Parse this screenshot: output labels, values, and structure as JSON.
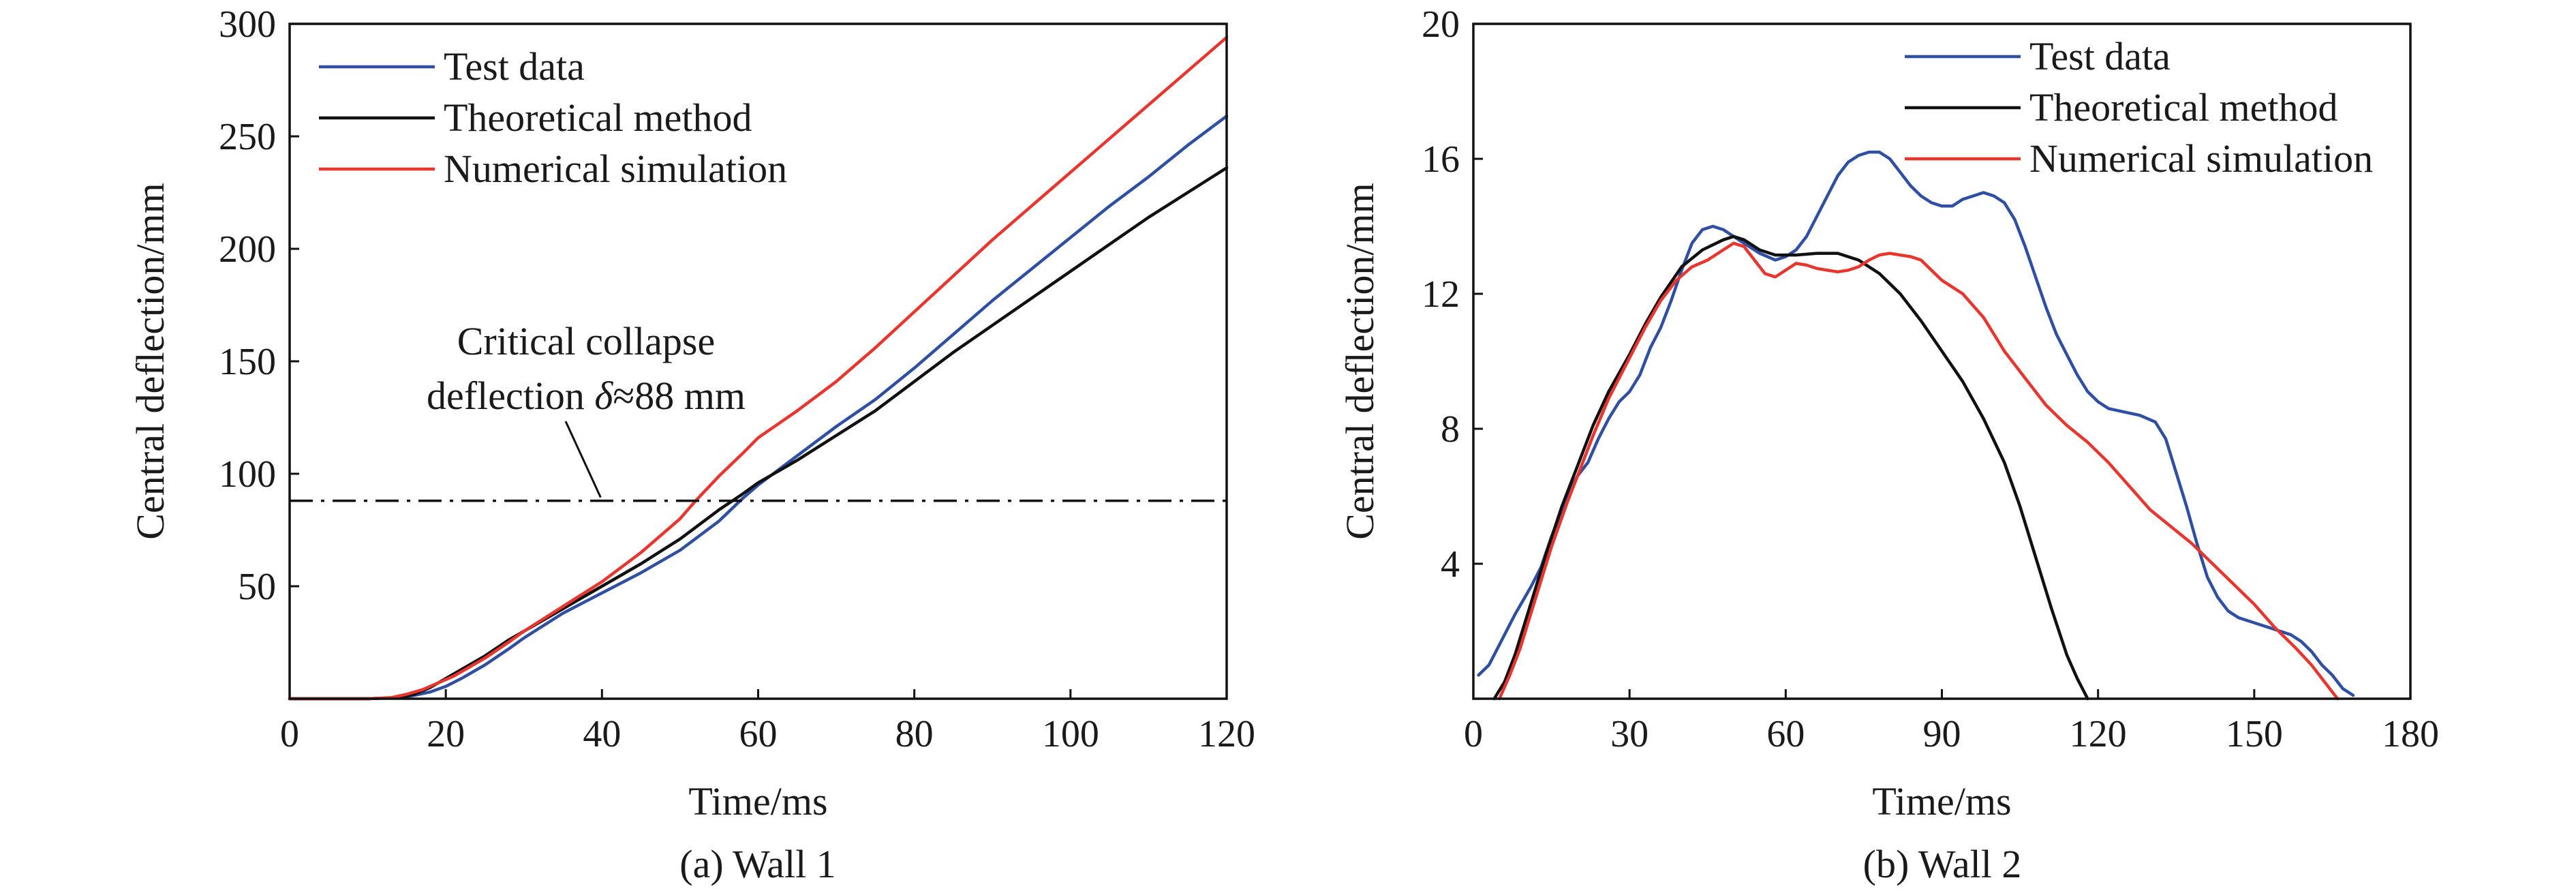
{
  "chart_data": [
    {
      "type": "line",
      "caption": "(a) Wall 1",
      "xlabel": "Time/ms",
      "ylabel": "Central deflection/mm",
      "xlim": [
        0,
        120
      ],
      "ylim": [
        0,
        300
      ],
      "xticks": [
        0,
        20,
        40,
        60,
        80,
        100,
        120
      ],
      "yticks": [
        50,
        100,
        150,
        200,
        250,
        300
      ],
      "legend_position": "top-left",
      "reference_line": {
        "y": 88,
        "style": "dash-dot"
      },
      "annotation": {
        "line1": "Critical collapse",
        "line2_prefix": "deflection ",
        "symbol": "δ",
        "line2_suffix": "≈88 mm",
        "points_to": [
          40,
          88
        ]
      },
      "series": [
        {
          "name": "Test data",
          "color": "#2f4fa2",
          "points": [
            [
              0,
              0
            ],
            [
              10,
              0
            ],
            [
              14,
              0.5
            ],
            [
              16,
              1.5
            ],
            [
              18,
              3
            ],
            [
              20,
              5.5
            ],
            [
              22,
              9
            ],
            [
              25,
              15
            ],
            [
              28,
              22
            ],
            [
              30,
              27
            ],
            [
              35,
              38
            ],
            [
              40,
              47
            ],
            [
              45,
              56
            ],
            [
              50,
              66
            ],
            [
              55,
              79
            ],
            [
              58,
              89
            ],
            [
              60,
              95
            ],
            [
              65,
              108
            ],
            [
              70,
              121
            ],
            [
              75,
              133
            ],
            [
              80,
              147
            ],
            [
              85,
              162
            ],
            [
              90,
              177
            ],
            [
              95,
              191
            ],
            [
              100,
              205
            ],
            [
              105,
              219
            ],
            [
              110,
              232
            ],
            [
              115,
              246
            ],
            [
              120,
              259
            ]
          ]
        },
        {
          "name": "Theoretical method",
          "color": "#111111",
          "points": [
            [
              0,
              0
            ],
            [
              10,
              0
            ],
            [
              14,
              0.5
            ],
            [
              16,
              2
            ],
            [
              18,
              5
            ],
            [
              20,
              9
            ],
            [
              22,
              13
            ],
            [
              25,
              19
            ],
            [
              28,
              26
            ],
            [
              30,
              30
            ],
            [
              35,
              40
            ],
            [
              40,
              50
            ],
            [
              45,
              60
            ],
            [
              50,
              71
            ],
            [
              55,
              84
            ],
            [
              58,
              91
            ],
            [
              60,
              96
            ],
            [
              65,
              106
            ],
            [
              70,
              117
            ],
            [
              75,
              128
            ],
            [
              80,
              141
            ],
            [
              85,
              154
            ],
            [
              90,
              166
            ],
            [
              95,
              178
            ],
            [
              100,
              190
            ],
            [
              105,
              202
            ],
            [
              110,
              214
            ],
            [
              115,
              225
            ],
            [
              120,
              236
            ]
          ]
        },
        {
          "name": "Numerical simulation",
          "color": "#e8362f",
          "points": [
            [
              0,
              0
            ],
            [
              10,
              0
            ],
            [
              13,
              0.5
            ],
            [
              15,
              2
            ],
            [
              17,
              4
            ],
            [
              19,
              7
            ],
            [
              21,
              10
            ],
            [
              23,
              14
            ],
            [
              25,
              18
            ],
            [
              28,
              25
            ],
            [
              30,
              30
            ],
            [
              35,
              41
            ],
            [
              40,
              52
            ],
            [
              45,
              65
            ],
            [
              50,
              80
            ],
            [
              52,
              88
            ],
            [
              55,
              99
            ],
            [
              58,
              109
            ],
            [
              60,
              116
            ],
            [
              65,
              128
            ],
            [
              70,
              141
            ],
            [
              75,
              156
            ],
            [
              80,
              172
            ],
            [
              85,
              188
            ],
            [
              90,
              204
            ],
            [
              95,
              219
            ],
            [
              100,
              234
            ],
            [
              105,
              249
            ],
            [
              110,
              264
            ],
            [
              115,
              279
            ],
            [
              120,
              294
            ]
          ]
        }
      ]
    },
    {
      "type": "line",
      "caption": "(b) Wall 2",
      "xlabel": "Time/ms",
      "ylabel": "Central deflection/mm",
      "xlim": [
        0,
        180
      ],
      "ylim": [
        0,
        20
      ],
      "xticks": [
        0,
        30,
        60,
        90,
        120,
        150,
        180
      ],
      "yticks": [
        4,
        8,
        12,
        16,
        20
      ],
      "legend_position": "top-right",
      "series": [
        {
          "name": "Test data",
          "color": "#2f4fa2",
          "points": [
            [
              1,
              0.7
            ],
            [
              3,
              1.0
            ],
            [
              5,
              1.6
            ],
            [
              8,
              2.5
            ],
            [
              11,
              3.3
            ],
            [
              13,
              3.9
            ],
            [
              15,
              4.8
            ],
            [
              17,
              5.6
            ],
            [
              19,
              6.3
            ],
            [
              20,
              6.6
            ],
            [
              22,
              7.0
            ],
            [
              24,
              7.7
            ],
            [
              26,
              8.3
            ],
            [
              28,
              8.8
            ],
            [
              30,
              9.1
            ],
            [
              32,
              9.6
            ],
            [
              34,
              10.4
            ],
            [
              36,
              11.0
            ],
            [
              38,
              11.8
            ],
            [
              40,
              12.7
            ],
            [
              42,
              13.5
            ],
            [
              44,
              13.9
            ],
            [
              46,
              14.0
            ],
            [
              48,
              13.9
            ],
            [
              50,
              13.7
            ],
            [
              52,
              13.5
            ],
            [
              55,
              13.2
            ],
            [
              58,
              13.0
            ],
            [
              60,
              13.1
            ],
            [
              62,
              13.3
            ],
            [
              64,
              13.7
            ],
            [
              66,
              14.3
            ],
            [
              68,
              14.9
            ],
            [
              70,
              15.5
            ],
            [
              72,
              15.9
            ],
            [
              74,
              16.1
            ],
            [
              76,
              16.2
            ],
            [
              78,
              16.2
            ],
            [
              80,
              16.0
            ],
            [
              82,
              15.6
            ],
            [
              84,
              15.2
            ],
            [
              86,
              14.9
            ],
            [
              88,
              14.7
            ],
            [
              90,
              14.6
            ],
            [
              92,
              14.6
            ],
            [
              94,
              14.8
            ],
            [
              96,
              14.9
            ],
            [
              98,
              15.0
            ],
            [
              100,
              14.9
            ],
            [
              102,
              14.7
            ],
            [
              104,
              14.2
            ],
            [
              106,
              13.4
            ],
            [
              108,
              12.5
            ],
            [
              110,
              11.6
            ],
            [
              112,
              10.8
            ],
            [
              114,
              10.2
            ],
            [
              116,
              9.6
            ],
            [
              118,
              9.1
            ],
            [
              120,
              8.8
            ],
            [
              122,
              8.6
            ],
            [
              125,
              8.5
            ],
            [
              128,
              8.4
            ],
            [
              131,
              8.2
            ],
            [
              133,
              7.7
            ],
            [
              135,
              6.7
            ],
            [
              137,
              5.7
            ],
            [
              139,
              4.6
            ],
            [
              141,
              3.6
            ],
            [
              143,
              3.0
            ],
            [
              145,
              2.6
            ],
            [
              147,
              2.4
            ],
            [
              149,
              2.3
            ],
            [
              151,
              2.2
            ],
            [
              153,
              2.1
            ],
            [
              155,
              2.0
            ],
            [
              157,
              1.9
            ],
            [
              159,
              1.7
            ],
            [
              161,
              1.4
            ],
            [
              163,
              1.0
            ],
            [
              165,
              0.7
            ],
            [
              167,
              0.3
            ],
            [
              169,
              0.1
            ]
          ]
        },
        {
          "name": "Theoretical method",
          "color": "#111111",
          "points": [
            [
              4,
              0
            ],
            [
              6,
              0.5
            ],
            [
              8,
              1.3
            ],
            [
              10,
              2.3
            ],
            [
              12,
              3.3
            ],
            [
              14,
              4.3
            ],
            [
              17,
              5.7
            ],
            [
              20,
              6.9
            ],
            [
              23,
              8.1
            ],
            [
              26,
              9.1
            ],
            [
              30,
              10.2
            ],
            [
              33,
              11.1
            ],
            [
              36,
              11.9
            ],
            [
              40,
              12.8
            ],
            [
              44,
              13.3
            ],
            [
              48,
              13.6
            ],
            [
              50,
              13.7
            ],
            [
              52,
              13.6
            ],
            [
              55,
              13.3
            ],
            [
              58,
              13.15
            ],
            [
              62,
              13.15
            ],
            [
              66,
              13.2
            ],
            [
              70,
              13.2
            ],
            [
              74,
              13.0
            ],
            [
              78,
              12.6
            ],
            [
              82,
              12.0
            ],
            [
              86,
              11.2
            ],
            [
              90,
              10.3
            ],
            [
              94,
              9.4
            ],
            [
              98,
              8.3
            ],
            [
              102,
              7.0
            ],
            [
              105,
              5.7
            ],
            [
              108,
              4.2
            ],
            [
              111,
              2.7
            ],
            [
              114,
              1.3
            ],
            [
              116,
              0.6
            ],
            [
              118,
              0
            ]
          ]
        },
        {
          "name": "Numerical simulation",
          "color": "#e8362f",
          "points": [
            [
              5,
              0
            ],
            [
              7,
              0.7
            ],
            [
              9,
              1.5
            ],
            [
              11,
              2.5
            ],
            [
              13,
              3.5
            ],
            [
              15,
              4.5
            ],
            [
              18,
              5.8
            ],
            [
              20,
              6.6
            ],
            [
              23,
              7.8
            ],
            [
              26,
              8.9
            ],
            [
              30,
              10.1
            ],
            [
              33,
              11.0
            ],
            [
              36,
              11.8
            ],
            [
              39,
              12.4
            ],
            [
              42,
              12.8
            ],
            [
              45,
              13.0
            ],
            [
              48,
              13.3
            ],
            [
              50,
              13.5
            ],
            [
              52,
              13.4
            ],
            [
              54,
              13.0
            ],
            [
              56,
              12.6
            ],
            [
              58,
              12.5
            ],
            [
              60,
              12.7
            ],
            [
              62,
              12.9
            ],
            [
              64,
              12.85
            ],
            [
              66,
              12.75
            ],
            [
              68,
              12.7
            ],
            [
              70,
              12.65
            ],
            [
              72,
              12.7
            ],
            [
              74,
              12.8
            ],
            [
              76,
              13.0
            ],
            [
              78,
              13.15
            ],
            [
              80,
              13.2
            ],
            [
              82,
              13.15
            ],
            [
              84,
              13.1
            ],
            [
              86,
              13.0
            ],
            [
              88,
              12.7
            ],
            [
              90,
              12.4
            ],
            [
              94,
              12.0
            ],
            [
              98,
              11.3
            ],
            [
              102,
              10.3
            ],
            [
              106,
              9.5
            ],
            [
              110,
              8.7
            ],
            [
              114,
              8.1
            ],
            [
              118,
              7.6
            ],
            [
              122,
              7.0
            ],
            [
              126,
              6.3
            ],
            [
              130,
              5.6
            ],
            [
              134,
              5.1
            ],
            [
              138,
              4.6
            ],
            [
              142,
              4.0
            ],
            [
              146,
              3.4
            ],
            [
              150,
              2.8
            ],
            [
              154,
              2.1
            ],
            [
              158,
              1.5
            ],
            [
              161,
              1.0
            ],
            [
              163,
              0.6
            ],
            [
              165,
              0.2
            ],
            [
              166,
              0
            ]
          ]
        }
      ]
    }
  ]
}
